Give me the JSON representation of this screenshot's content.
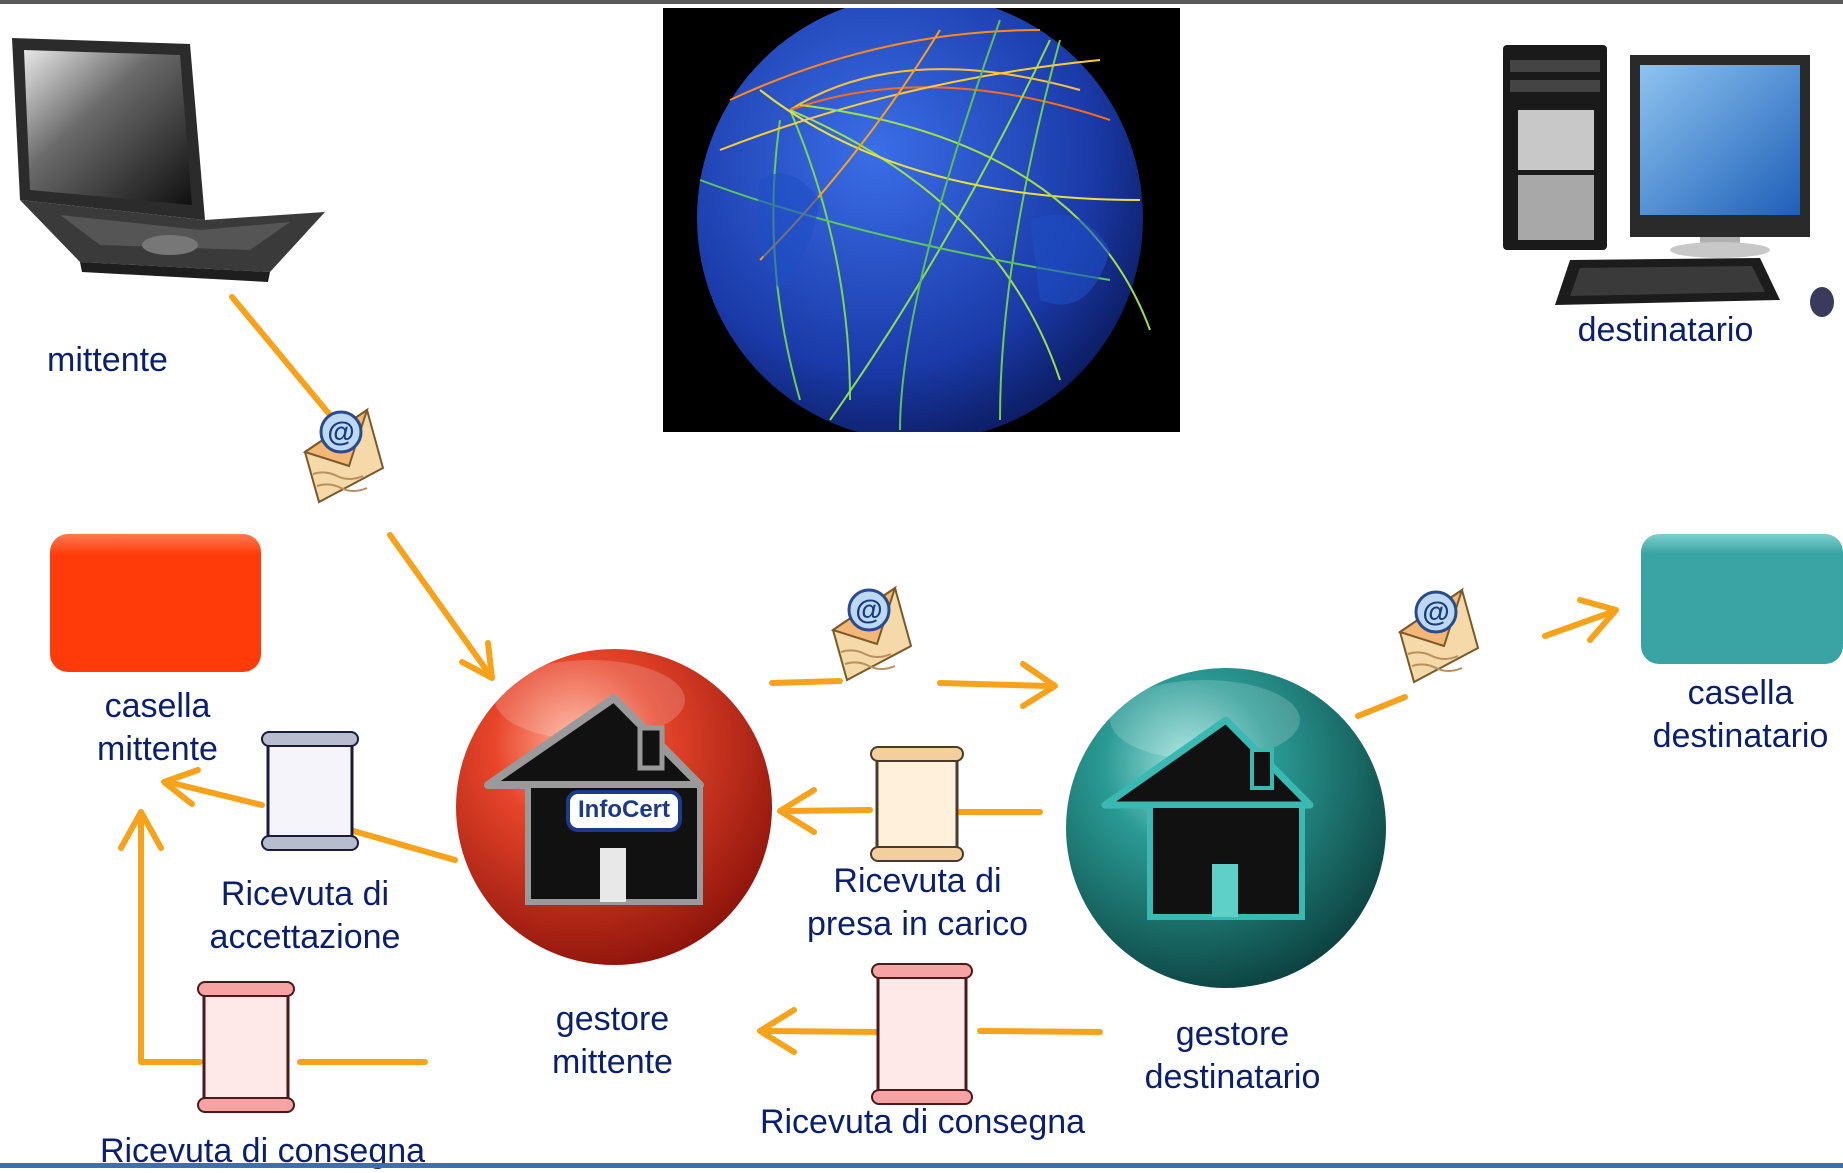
{
  "labels": {
    "mittente": "mittente",
    "destinatario": "destinatario",
    "casella_mittente": "casella\nmittente",
    "casella_destinatario": "casella\ndestinatario",
    "ricevuta_accettazione": "Ricevuta di\naccettazione",
    "ricevuta_presa_in_carico": "Ricevuta di\npresa in carico",
    "gestore_mittente": "gestore\nmittente",
    "gestore_destinatario": "gestore\ndestinatario",
    "ricevuta_consegna_center": "Ricevuta di consegna",
    "ricevuta_consegna_left": "Ricevuta di consegna"
  },
  "logo_text": "InfoCert",
  "colors": {
    "arrow": "#f7a21b",
    "casella_mittente": "#ff3b0a",
    "casella_destinatario": "#3aa3a3",
    "gestore_mittente": "#d4331a",
    "gestore_destinatario": "#1f8a86",
    "label_text": "#0a1f6e",
    "globe_background": "#000000",
    "globe": "#1b3fb0"
  },
  "icons": {
    "laptop": "laptop-icon",
    "desktop": "desktop-computer-icon",
    "globe": "globe-network-icon",
    "envelope": "email-envelope-icon",
    "receipt": "scroll-receipt-icon",
    "house": "house-icon"
  }
}
